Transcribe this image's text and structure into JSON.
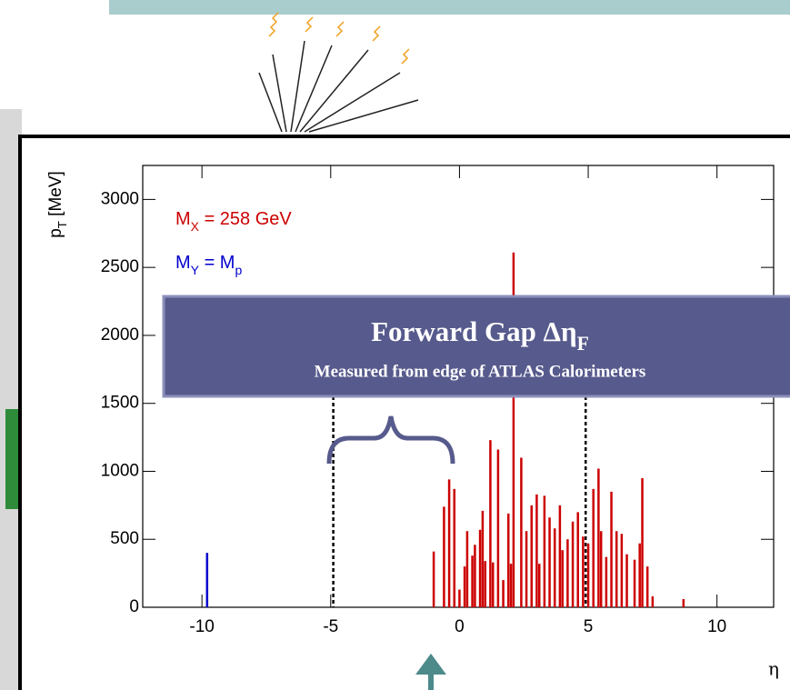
{
  "chart_data": {
    "type": "spike",
    "y_label": [
      {
        "text": "p"
      },
      {
        "sub": "T"
      },
      {
        "text": " [MeV]"
      }
    ],
    "x_label": "η",
    "xlim": [
      -12.3,
      12.2
    ],
    "ylim": [
      0,
      3250
    ],
    "xticks": [
      -10,
      -5,
      0,
      5,
      10
    ],
    "yticks": [
      0,
      500,
      1000,
      1500,
      2000,
      2500,
      3000
    ],
    "calorimeter_edges": [
      -4.9,
      4.9
    ],
    "series": [
      {
        "label": [
          {
            "text": "M"
          },
          {
            "sub": "X"
          },
          {
            "text": " = 258 GeV"
          }
        ],
        "color": "#cc0000",
        "x": [
          -1.0,
          -0.6,
          -0.4,
          -0.2,
          0.0,
          0.2,
          0.3,
          0.5,
          0.6,
          0.8,
          0.9,
          1.0,
          1.2,
          1.3,
          1.5,
          1.7,
          1.9,
          2.0,
          2.1,
          2.4,
          2.6,
          2.8,
          3.0,
          3.1,
          3.3,
          3.5,
          3.7,
          3.9,
          4.0,
          4.2,
          4.4,
          4.6,
          4.8,
          5.0,
          5.2,
          5.4,
          5.5,
          5.7,
          5.9,
          6.1,
          6.3,
          6.5,
          6.8,
          7.0,
          7.1,
          7.3,
          7.5,
          8.7
        ],
        "values": [
          410,
          740,
          940,
          870,
          130,
          300,
          560,
          380,
          460,
          570,
          710,
          340,
          1230,
          330,
          1160,
          200,
          690,
          320,
          2610,
          1100,
          560,
          750,
          830,
          320,
          820,
          660,
          580,
          750,
          420,
          500,
          630,
          700,
          520,
          470,
          870,
          1020,
          560,
          370,
          850,
          560,
          540,
          390,
          350,
          470,
          950,
          300,
          80,
          60
        ]
      },
      {
        "label": [
          {
            "text": "M"
          },
          {
            "sub": "Y"
          },
          {
            "text": " = M"
          },
          {
            "sub": "p"
          }
        ],
        "color": "#0000cc",
        "x": [
          -9.8
        ],
        "values": [
          400
        ]
      }
    ],
    "callout": {
      "title": [
        {
          "text": "Forward Gap Δη"
        },
        {
          "sub": "F"
        }
      ],
      "subtitle": "Measured from edge of ATLAS Calorimeters"
    }
  }
}
